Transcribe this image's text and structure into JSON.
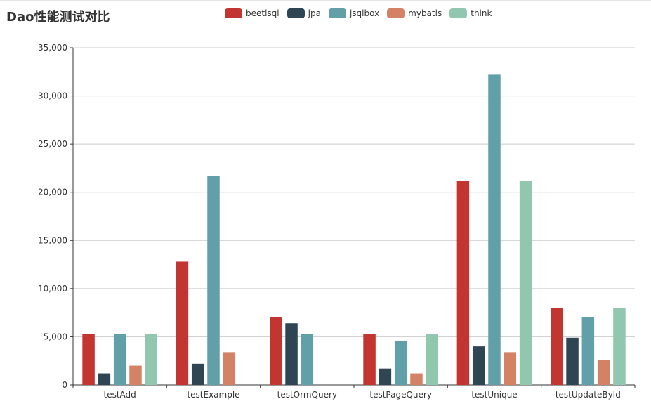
{
  "chart_data": {
    "type": "bar",
    "title": "Dao性能测试对比",
    "categories": [
      "testAdd",
      "testExample",
      "testOrmQuery",
      "testPageQuery",
      "testUnique",
      "testUpdateById"
    ],
    "series": [
      {
        "name": "beetlsql",
        "color": "#c23531",
        "values": [
          5300,
          12800,
          7050,
          5300,
          21200,
          8000
        ]
      },
      {
        "name": "jpa",
        "color": "#2f4554",
        "values": [
          1200,
          2200,
          6400,
          1700,
          4000,
          4900
        ]
      },
      {
        "name": "jsqlbox",
        "color": "#61a0a8",
        "values": [
          5300,
          21700,
          5300,
          4600,
          32200,
          7050
        ]
      },
      {
        "name": "mybatis",
        "color": "#d48265",
        "values": [
          2000,
          3400,
          0,
          1200,
          3400,
          2600
        ]
      },
      {
        "name": "think",
        "color": "#91c7ae",
        "values": [
          5300,
          0,
          0,
          5300,
          21200,
          8000
        ]
      }
    ],
    "yticks": [
      "0",
      "5,000",
      "10,000",
      "15,000",
      "20,000",
      "25,000",
      "30,000",
      "35,000"
    ],
    "ylim": [
      0,
      35000
    ],
    "xlabel": "",
    "ylabel": "",
    "grid": true,
    "legend_position": "top-center"
  }
}
